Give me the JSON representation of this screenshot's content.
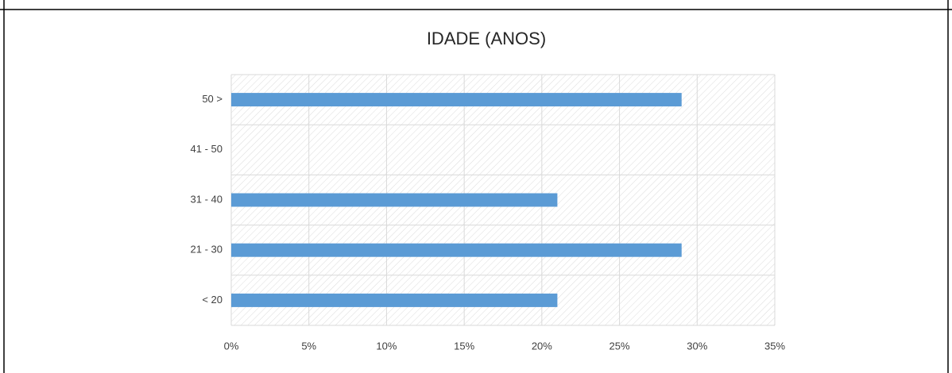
{
  "chart_data": {
    "type": "bar",
    "orientation": "horizontal",
    "title": "IDADE (ANOS)",
    "categories": [
      "< 20",
      "21 - 30",
      "31 - 40",
      "41 - 50",
      "50 >"
    ],
    "values": [
      21,
      29,
      21,
      0,
      29
    ],
    "color": "#5b9bd5",
    "xlim": [
      0,
      35
    ],
    "xticks": [
      {
        "value": 0,
        "label": "0%"
      },
      {
        "value": 5,
        "label": "5%"
      },
      {
        "value": 10,
        "label": "10%"
      },
      {
        "value": 15,
        "label": "15%"
      },
      {
        "value": 20,
        "label": "20%"
      },
      {
        "value": 25,
        "label": "25%"
      },
      {
        "value": 30,
        "label": "30%"
      },
      {
        "value": 35,
        "label": "35%"
      }
    ],
    "grid": true
  }
}
